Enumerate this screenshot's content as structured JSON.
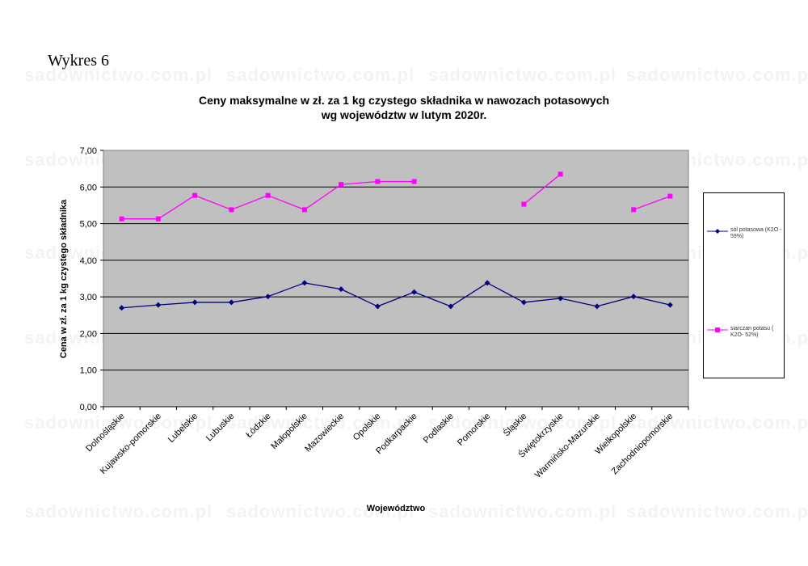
{
  "figure_label": "Wykres 6",
  "watermark": "sadownictwo.com.pl",
  "chart_data": {
    "type": "line",
    "title_line1": "Ceny maksymalne w zł. za 1 kg czystego składnika w nawozach potasowych",
    "title_line2": "wg województw w lutym  2020r.",
    "xlabel": "Województwo",
    "ylabel": "Cena w zł. za 1 kg czystego składnika",
    "ylim": [
      0,
      7
    ],
    "yticks": [
      "0,00",
      "1,00",
      "2,00",
      "3,00",
      "4,00",
      "5,00",
      "6,00",
      "7,00"
    ],
    "grid": true,
    "legend_position": "right",
    "plot_background": "#c0c0c0",
    "categories": [
      "Dolnośląskie",
      "Kujawsko-pomorskie",
      "Lubelskie",
      "Lubuskie",
      "Łódzkie",
      "Małopolskie",
      "Mazowieckie",
      "Opolskie",
      "Podkarpackie",
      "Podlaskie",
      "Pomorskie",
      "Śląskie",
      "Świętokrzyskie",
      "Warmińsko-Mazurskie",
      "Wielkopolskie",
      "Zachodniopomorskie"
    ],
    "series": [
      {
        "name": "sól potasowa (K2O - 59%)",
        "color": "#000080",
        "marker": "diamond",
        "values": [
          2.7,
          2.78,
          2.85,
          2.85,
          3.01,
          3.38,
          3.21,
          2.74,
          3.13,
          2.74,
          3.38,
          2.85,
          2.96,
          2.74,
          3.01,
          2.78
        ]
      },
      {
        "name": "siarczan potasu ( K2O- 52%)",
        "color": "#ff00ff",
        "marker": "square",
        "values": [
          5.13,
          5.13,
          5.77,
          5.38,
          5.77,
          5.38,
          6.07,
          6.15,
          6.15,
          null,
          null,
          5.53,
          6.35,
          null,
          5.38,
          5.75
        ]
      }
    ]
  }
}
